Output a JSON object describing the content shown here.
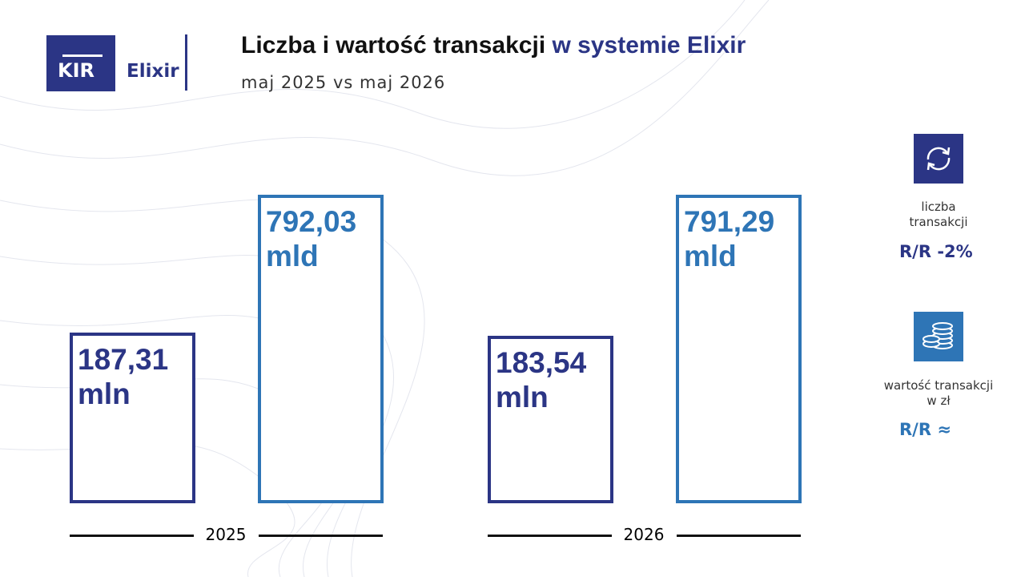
{
  "logo": {
    "brand": "KIR",
    "product": "Elixir"
  },
  "chart_data": {
    "type": "bar",
    "title": "Liczba i wartość transakcji",
    "title_highlight": "w systemie Elixir",
    "subtitle": "maj 2025 vs maj 2026",
    "categories": [
      "2025",
      "2026"
    ],
    "series": [
      {
        "name": "liczba transakcji",
        "color": "#2b3585",
        "values": [
          187.31,
          183.54
        ],
        "value_labels": [
          "187,31 mln",
          "183,54 mln"
        ],
        "change": "R/R -2%"
      },
      {
        "name": "wartość transakcji w zł",
        "color": "#2e75b6",
        "axis": "y2",
        "values": [
          792.03,
          791.29
        ],
        "value_labels": [
          "792,03 mld",
          "791,29 mld"
        ],
        "change": "R/R ≈"
      }
    ],
    "ylim": [
      0,
      345
    ],
    "y2lim": [
      0,
      806
    ]
  }
}
